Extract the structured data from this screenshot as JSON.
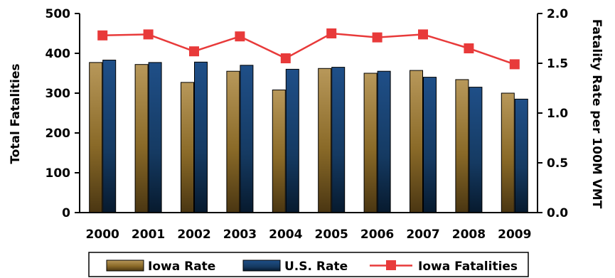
{
  "chart_data": {
    "type": "bar",
    "categories": [
      "2000",
      "2001",
      "2002",
      "2003",
      "2004",
      "2005",
      "2006",
      "2007",
      "2008",
      "2009"
    ],
    "series": [
      {
        "name": "Iowa Rate",
        "axis": "left",
        "kind": "bar",
        "color": "#9a7a2e",
        "values": [
          377,
          372,
          327,
          355,
          308,
          362,
          350,
          357,
          334,
          300
        ]
      },
      {
        "name": "U.S. Rate",
        "axis": "left",
        "kind": "bar",
        "color": "#123a66",
        "values": [
          383,
          377,
          378,
          370,
          360,
          365,
          355,
          340,
          315,
          285
        ]
      },
      {
        "name": "Iowa Fatalities",
        "axis": "right",
        "kind": "line",
        "color": "#e83a3a",
        "values": [
          1.78,
          1.79,
          1.62,
          1.77,
          1.55,
          1.8,
          1.76,
          1.79,
          1.65,
          1.49
        ]
      }
    ],
    "ylabel": "Total Fatalities",
    "y2label": "Fatality Rate per 100M VMT",
    "ylim": [
      0,
      500
    ],
    "y2lim": [
      0,
      2.0
    ],
    "yticks": [
      "0",
      "100",
      "200",
      "300",
      "400",
      "500"
    ],
    "y2ticks": [
      "0.0",
      "0.5",
      "1.0",
      "1.5",
      "2.0"
    ],
    "grid": false,
    "legend_position": "bottom"
  }
}
